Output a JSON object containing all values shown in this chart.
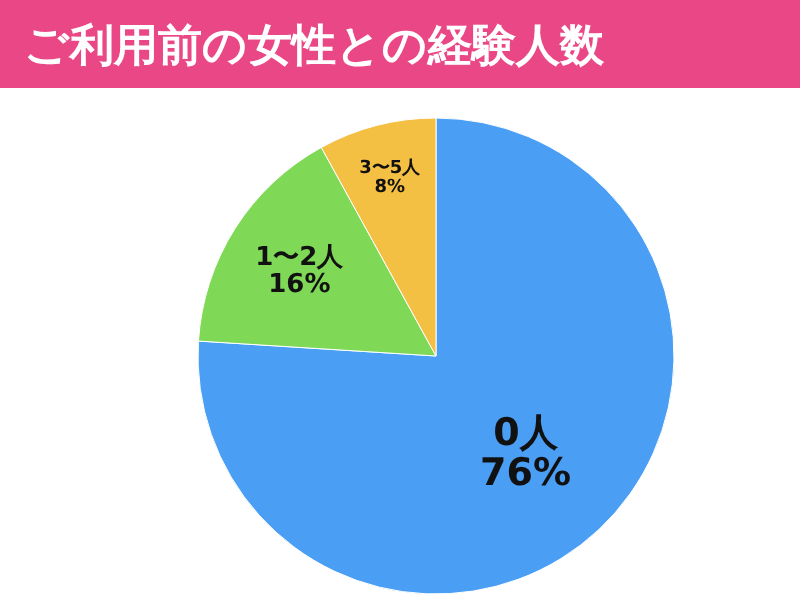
{
  "chart_data": {
    "type": "pie",
    "title": "ご利用前の女性との経験人数",
    "categories": [
      "0人",
      "1〜2人",
      "3〜5人"
    ],
    "values": [
      76,
      16,
      8
    ],
    "colors": [
      "#4a9ff5",
      "#7fd957",
      "#f4c043"
    ],
    "value_labels": [
      "76%",
      "16%",
      "8%"
    ]
  }
}
